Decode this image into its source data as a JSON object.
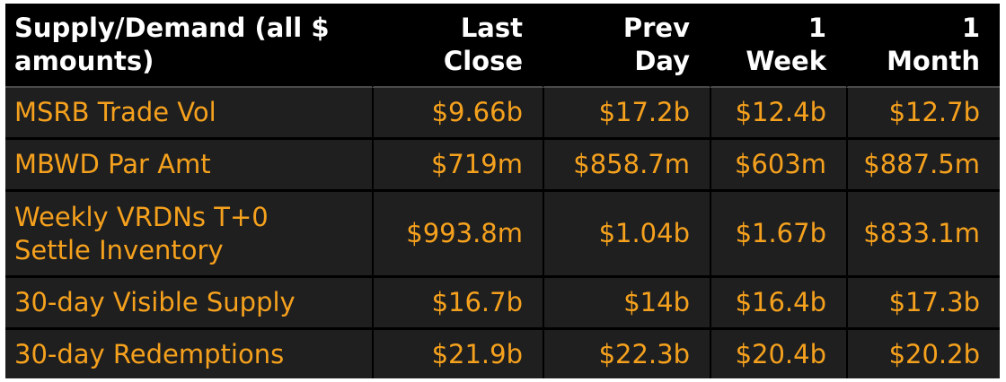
{
  "table": {
    "headers": [
      "Supply/Demand (all $ amounts)",
      "Last Close",
      "Prev Day",
      "1 Week",
      "1 Month"
    ],
    "rows": [
      {
        "label": "MSRB Trade Vol",
        "values": [
          "$9.66b",
          "$17.2b",
          "$12.4b",
          "$12.7b"
        ]
      },
      {
        "label": "MBWD Par Amt",
        "values": [
          "$719m",
          "$858.7m",
          "$603m",
          "$887.5m"
        ]
      },
      {
        "label": "Weekly VRDNs T+0 Settle Inventory",
        "values": [
          "$993.8m",
          "$1.04b",
          "$1.67b",
          "$833.1m"
        ]
      },
      {
        "label": "30-day Visible Supply",
        "values": [
          "$16.7b",
          "$14b",
          "$16.4b",
          "$17.3b"
        ]
      },
      {
        "label": "30-day Redemptions",
        "values": [
          "$21.9b",
          "$22.3b",
          "$20.4b",
          "$20.2b"
        ]
      }
    ]
  },
  "colors": {
    "background": "#000000",
    "row_background": "#1f1f1f",
    "header_text": "#ffffff",
    "value_text": "#f5a11d"
  }
}
